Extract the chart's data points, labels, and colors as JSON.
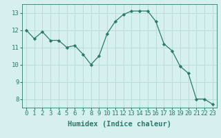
{
  "x": [
    0,
    1,
    2,
    3,
    4,
    5,
    6,
    7,
    8,
    9,
    10,
    11,
    12,
    13,
    14,
    15,
    16,
    17,
    18,
    19,
    20,
    21,
    22,
    23
  ],
  "y": [
    12.0,
    11.5,
    11.9,
    11.4,
    11.4,
    11.0,
    11.1,
    10.6,
    10.0,
    10.5,
    11.8,
    12.5,
    12.9,
    13.1,
    13.1,
    13.1,
    12.5,
    11.2,
    10.8,
    9.9,
    9.5,
    8.0,
    8.0,
    7.7
  ],
  "line_color": "#2a7a6a",
  "marker": "D",
  "marker_size": 2.2,
  "bg_color": "#d5f0ee",
  "grid_color": "#b8ddd8",
  "xlabel": "Humidex (Indice chaleur)",
  "xlabel_fontsize": 7.5,
  "tick_fontsize": 6.5,
  "ylim": [
    7.5,
    13.5
  ],
  "xlim": [
    -0.5,
    23.5
  ],
  "yticks": [
    8,
    9,
    10,
    11,
    12,
    13
  ],
  "xticks": [
    0,
    1,
    2,
    3,
    4,
    5,
    6,
    7,
    8,
    9,
    10,
    11,
    12,
    13,
    14,
    15,
    16,
    17,
    18,
    19,
    20,
    21,
    22,
    23
  ]
}
